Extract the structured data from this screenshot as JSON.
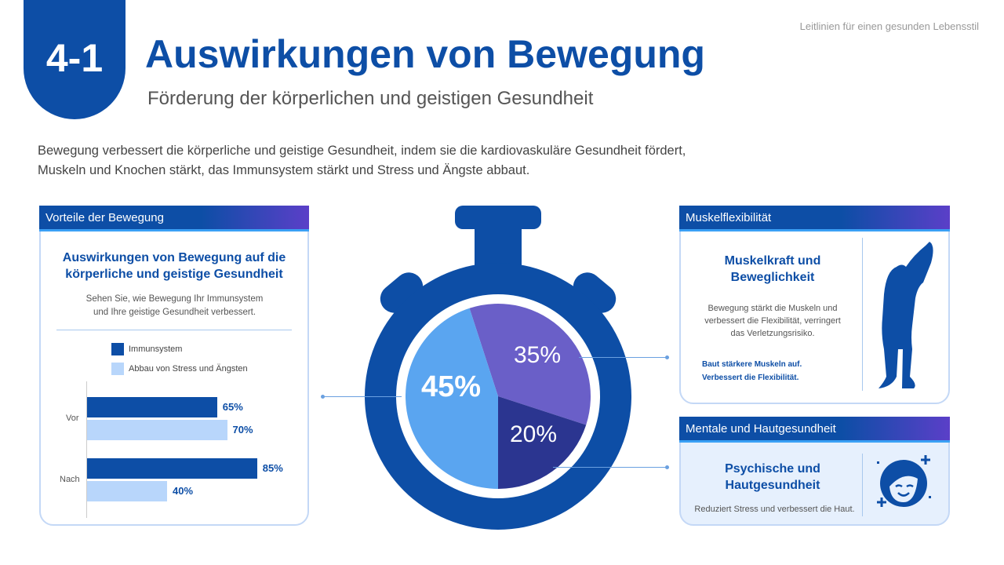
{
  "header": {
    "section_number": "4-1",
    "title": "Auswirkungen von Bewegung",
    "subtitle": "Förderung der körperlichen und geistigen Gesundheit",
    "top_right": "Leitlinien für einen gesunden Lebensstil"
  },
  "intro": "Bewegung verbessert die körperliche und geistige Gesundheit, indem sie die kardiovaskuläre Gesundheit fördert, Muskeln und Knochen stärkt, das Immunsystem stärkt und Stress und Ängste abbaut.",
  "left_panel": {
    "header": "Vorteile der Bewegung",
    "title": "Auswirkungen von Bewegung auf die körperliche und geistige Gesundheit",
    "text": "Sehen Sie, wie Bewegung Ihr Immunsystem und Ihre geistige Gesundheit verbessert."
  },
  "right_top": {
    "header": "Muskelflexibilität",
    "title": "Muskelkraft und Beweglichkeit",
    "text": "Bewegung stärkt die Muskeln und verbessert die Flexibilität, verringert das Verletzungsrisiko.",
    "bullets": [
      "Baut stärkere Muskeln auf.",
      "Verbessert die Flexibilität."
    ],
    "icon": "stretching-person-icon"
  },
  "right_bottom": {
    "header": "Mentale und Hautgesundheit",
    "title": "Psychische und Hautgesundheit",
    "text": "Reduziert Stress und verbessert die Haut.",
    "icon": "happy-face-sparkle-icon"
  },
  "colors": {
    "primary": "#0d4ea6",
    "light": "#b8d6fb",
    "purple": "#6a5fc8",
    "navy": "#2b3590",
    "sky": "#5aa5f0"
  },
  "chart_data": [
    {
      "type": "bar",
      "orientation": "horizontal",
      "categories": [
        "Vor",
        "Nach"
      ],
      "series": [
        {
          "name": "Immunsystem",
          "values": [
            65,
            85
          ],
          "labels": [
            "65%",
            "85%"
          ],
          "color": "#0d4ea6"
        },
        {
          "name": "Abbau von Stress und Ängsten",
          "values": [
            70,
            40
          ],
          "labels": [
            "70%",
            "40%"
          ],
          "color": "#b8d6fb"
        }
      ],
      "legend": "top"
    },
    {
      "type": "pie",
      "values": [
        35,
        20,
        45
      ],
      "labels": [
        "35%",
        "20%",
        "45%"
      ],
      "colors": [
        "#6a5fc8",
        "#2b3590",
        "#5aa5f0"
      ]
    }
  ]
}
